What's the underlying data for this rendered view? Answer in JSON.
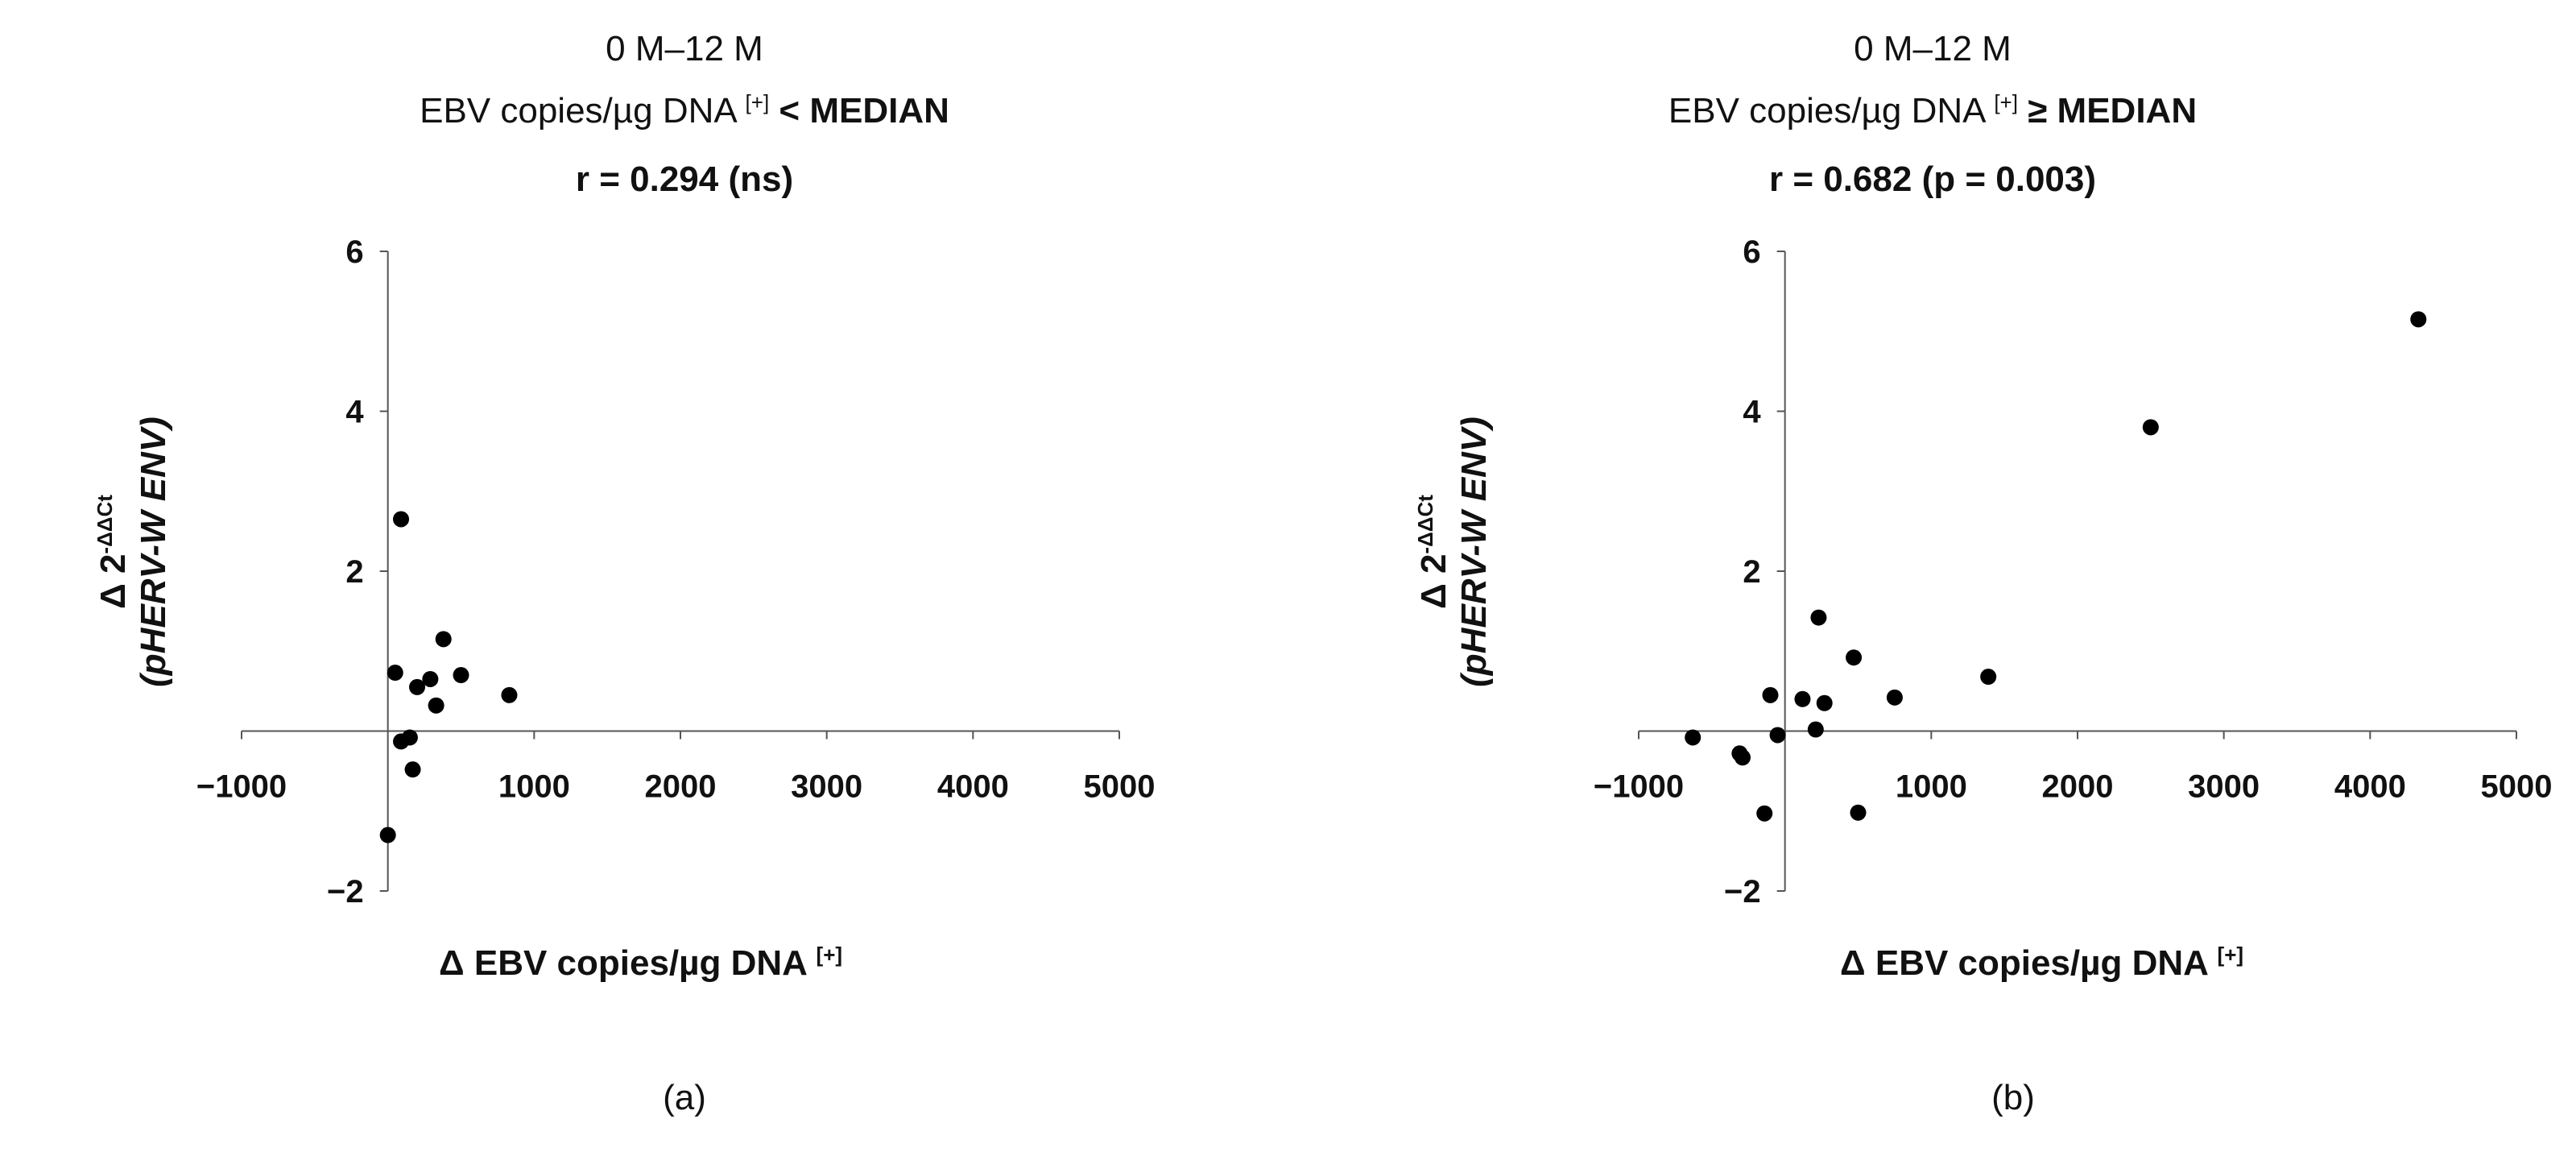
{
  "chart_data": [
    {
      "type": "scatter",
      "panel_label": "(a)",
      "title_line1": "0 M–12 M",
      "title_line2_prefix": "EBV copies/µg DNA",
      "title_line2_sup": "[+]",
      "title_line2_bold": "< MEDIAN",
      "title_line3": "r = 0.294 (ns)",
      "xlabel": "Δ EBV copies/µg DNA",
      "xlabel_sup": "[+]",
      "ylabel_line1": "Δ 2",
      "ylabel_sup": "-ΔΔCt",
      "ylabel_line2": "(pHERV-W ENV)",
      "xlim": [
        -1000,
        5000
      ],
      "ylim": [
        -2,
        6
      ],
      "x_ticks": [
        -1000,
        1000,
        2000,
        3000,
        4000,
        5000
      ],
      "x_tick_labels": [
        "−1000",
        "1000",
        "2000",
        "3000",
        "4000",
        "5000"
      ],
      "y_ticks": [
        -2,
        2,
        4,
        6
      ],
      "y_tick_labels": [
        "−2",
        "2",
        "4",
        "6"
      ],
      "points": [
        {
          "x": 90,
          "y": 2.65
        },
        {
          "x": 380,
          "y": 1.15
        },
        {
          "x": 50,
          "y": 0.73
        },
        {
          "x": 200,
          "y": 0.55
        },
        {
          "x": 290,
          "y": 0.65
        },
        {
          "x": 500,
          "y": 0.7
        },
        {
          "x": 830,
          "y": 0.45
        },
        {
          "x": 330,
          "y": 0.32
        },
        {
          "x": 90,
          "y": -0.13
        },
        {
          "x": 150,
          "y": -0.08
        },
        {
          "x": 170,
          "y": -0.48
        },
        {
          "x": 0,
          "y": -1.3
        }
      ]
    },
    {
      "type": "scatter",
      "panel_label": "(b)",
      "title_line1": "0 M–12 M",
      "title_line2_prefix": "EBV copies/µg DNA",
      "title_line2_sup": "[+]",
      "title_line2_bold": "≥ MEDIAN",
      "title_line3": "r = 0.682 (p = 0.003)",
      "xlabel": "Δ EBV copies/µg DNA",
      "xlabel_sup": "[+]",
      "ylabel_line1": "Δ 2",
      "ylabel_sup": "-ΔΔCt",
      "ylabel_line2": "(pHERV-W ENV)",
      "xlim": [
        -1000,
        5000
      ],
      "ylim": [
        -2,
        6
      ],
      "x_ticks": [
        -1000,
        1000,
        2000,
        3000,
        4000,
        5000
      ],
      "x_tick_labels": [
        "−1000",
        "1000",
        "2000",
        "3000",
        "4000",
        "5000"
      ],
      "y_ticks": [
        -2,
        2,
        4,
        6
      ],
      "y_tick_labels": [
        "−2",
        "2",
        "4",
        "6"
      ],
      "points": [
        {
          "x": 4330,
          "y": 5.15
        },
        {
          "x": 2500,
          "y": 3.8
        },
        {
          "x": 230,
          "y": 1.42
        },
        {
          "x": 470,
          "y": 0.92
        },
        {
          "x": 1390,
          "y": 0.68
        },
        {
          "x": 750,
          "y": 0.42
        },
        {
          "x": -100,
          "y": 0.45
        },
        {
          "x": 120,
          "y": 0.4
        },
        {
          "x": 270,
          "y": 0.35
        },
        {
          "x": 210,
          "y": 0.02
        },
        {
          "x": -50,
          "y": -0.05
        },
        {
          "x": -630,
          "y": -0.08
        },
        {
          "x": -310,
          "y": -0.28
        },
        {
          "x": -290,
          "y": -0.33
        },
        {
          "x": -140,
          "y": -1.03
        },
        {
          "x": 500,
          "y": -1.02
        }
      ]
    }
  ]
}
